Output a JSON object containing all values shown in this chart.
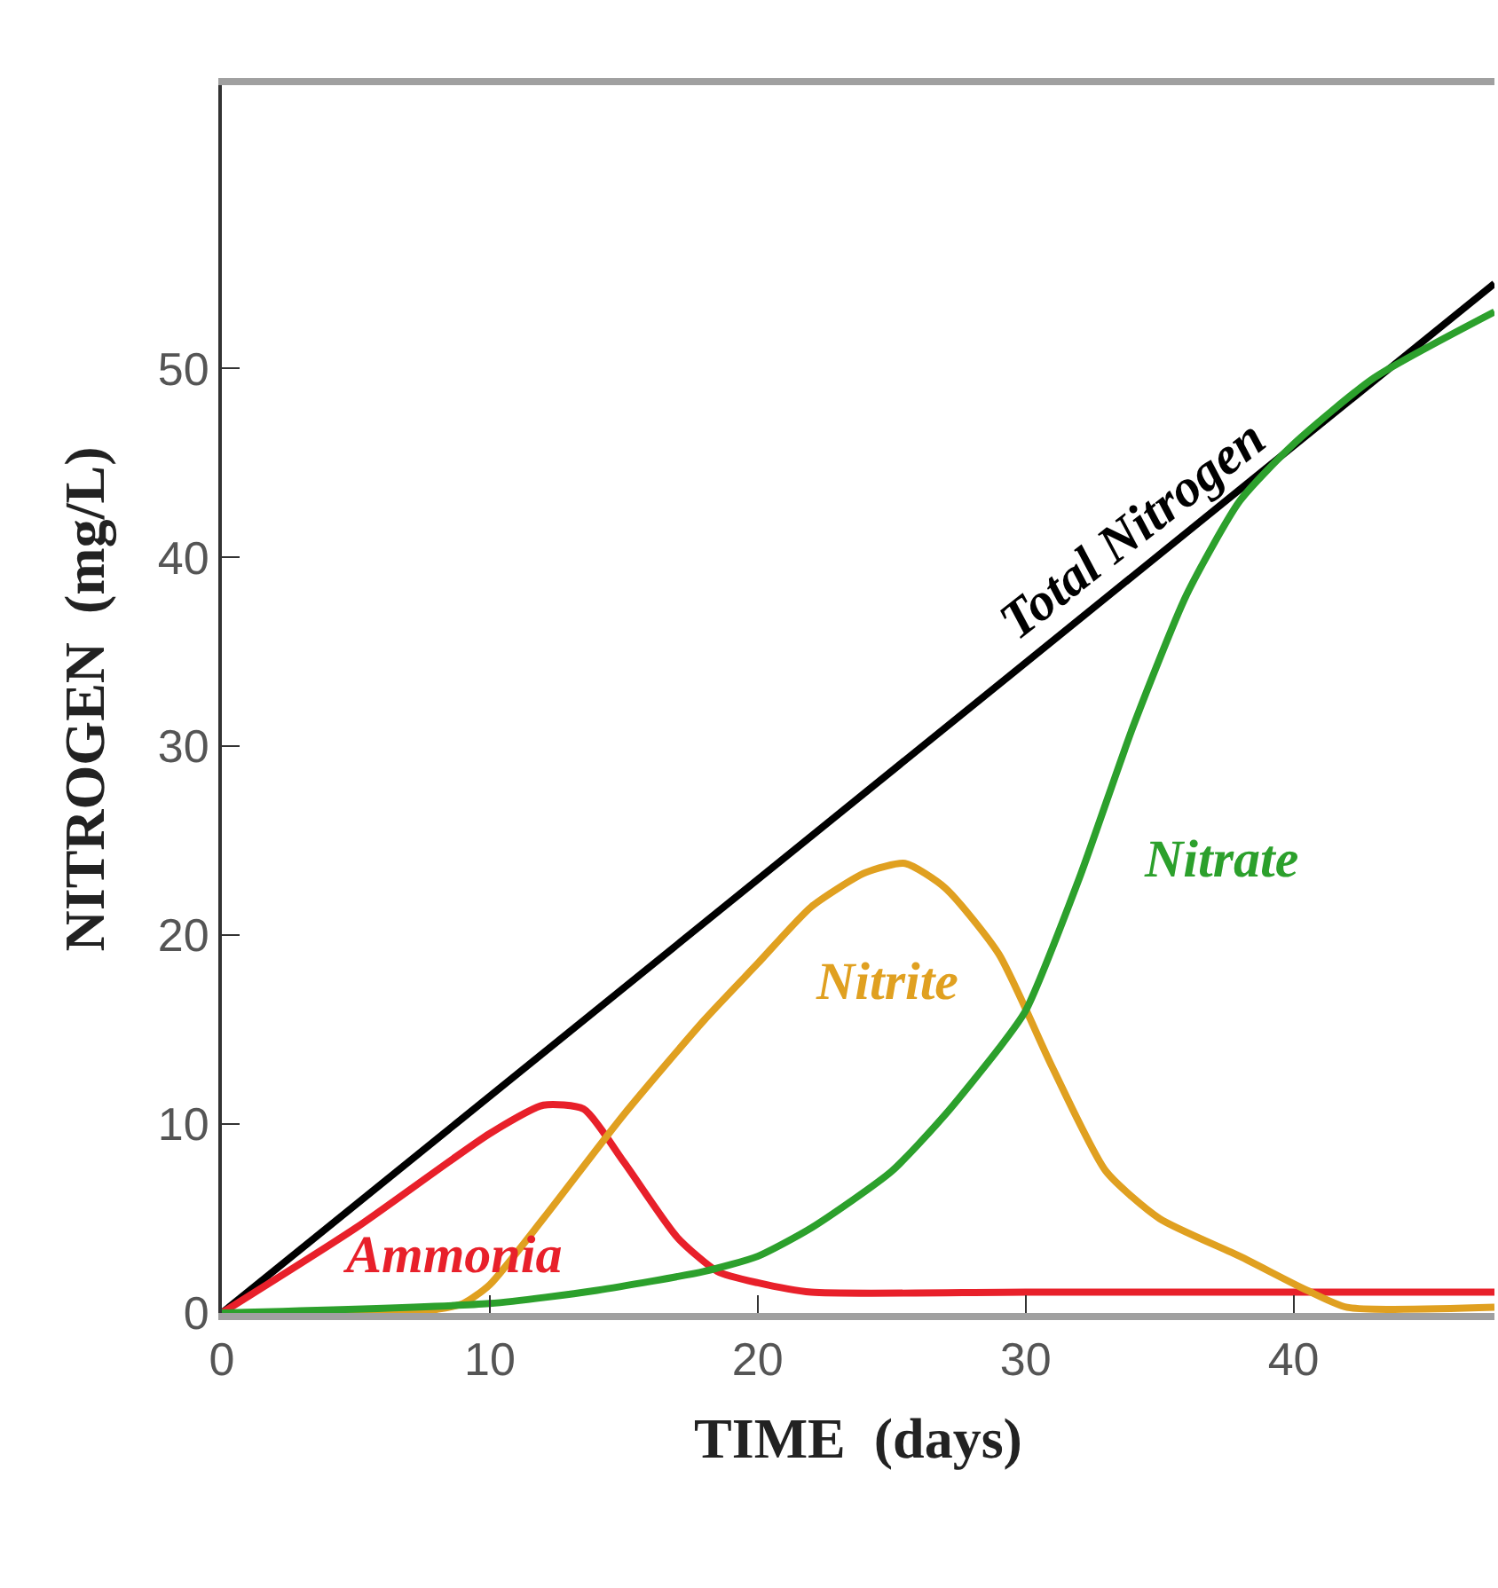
{
  "chart_data": {
    "type": "line",
    "xlabel": "TIME  (days)",
    "ylabel": "NITROGEN  (mg/L)",
    "xlim": [
      0,
      47.5
    ],
    "ylim": [
      0,
      65
    ],
    "xticks": [
      0,
      10,
      20,
      30,
      40
    ],
    "yticks": [
      0,
      10,
      20,
      30,
      40,
      50
    ],
    "legend": false,
    "marker": "none",
    "line_style": "solid",
    "series": [
      {
        "name": "Total Nitrogen",
        "color": "#000000",
        "x": [
          0,
          47.5
        ],
        "values": [
          0,
          54.5
        ]
      },
      {
        "name": "Ammonia",
        "color": "#e8202a",
        "x": [
          0,
          5,
          10,
          12,
          13.5,
          15,
          17,
          18.5,
          20,
          22,
          30,
          47.5
        ],
        "values": [
          0,
          4.5,
          9.5,
          11,
          10.8,
          8,
          4,
          2.2,
          1.6,
          1.1,
          1.1,
          1.1
        ]
      },
      {
        "name": "Nitrite",
        "color": "#e0a020",
        "x": [
          0,
          7,
          9,
          10,
          12,
          15,
          18,
          20,
          22,
          24,
          25.5,
          27,
          29,
          31,
          33,
          35,
          38,
          40.5,
          42,
          47.5
        ],
        "values": [
          0,
          0,
          0.5,
          1.5,
          5,
          10.5,
          15.5,
          18.5,
          21.5,
          23.3,
          23.8,
          22.5,
          19,
          13,
          7.5,
          5,
          3,
          1.2,
          0.3,
          0.3
        ]
      },
      {
        "name": "Nitrate",
        "color": "#2ca02c",
        "x": [
          0,
          10,
          14,
          18,
          20,
          22,
          25,
          27,
          29,
          30,
          32,
          34,
          36,
          38,
          40,
          43,
          47.5
        ],
        "values": [
          0,
          0.5,
          1.2,
          2.2,
          3,
          4.5,
          7.5,
          10.5,
          14,
          16,
          23,
          31,
          38,
          43,
          46,
          49.5,
          53
        ]
      }
    ]
  }
}
